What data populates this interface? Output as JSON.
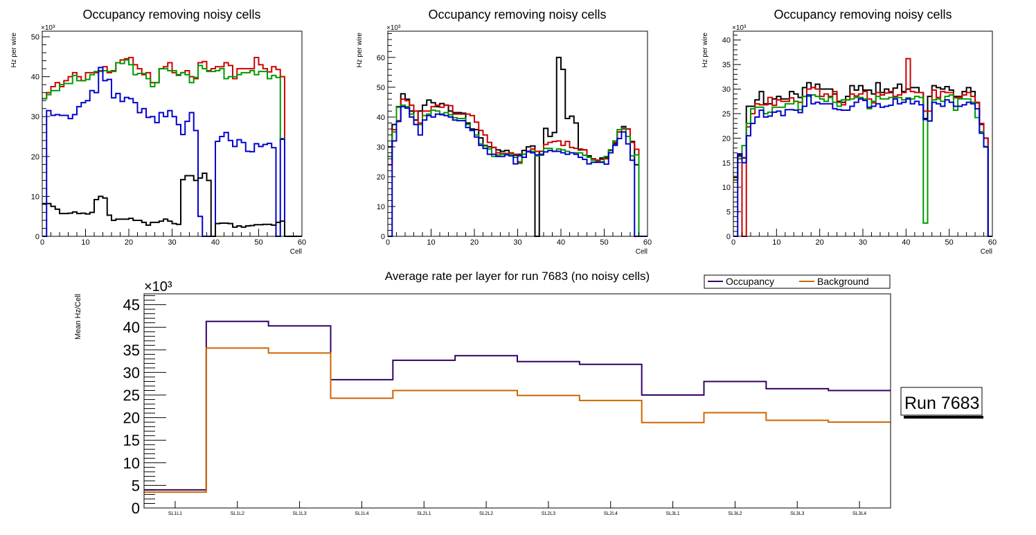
{
  "chart_data": [
    {
      "type": "line",
      "style": "step-histogram",
      "title": "Occupancy removing noisy cells",
      "xlabel": "Cell",
      "ylabel": "Hz per wire",
      "y_multiplier": "×10³",
      "xlim": [
        0,
        60
      ],
      "ylim": [
        0,
        51.4
      ],
      "x_ticks": [
        "0",
        "10",
        "20",
        "30",
        "40",
        "50",
        "60"
      ],
      "y_ticks": [
        "0",
        "10",
        "20",
        "30",
        "40",
        "50"
      ],
      "series": [
        {
          "name": "red",
          "color": "#cc0000",
          "values": [
            34.5,
            36,
            37.5,
            38.5,
            37.5,
            39,
            40,
            41,
            40,
            39,
            41,
            41,
            41,
            41.5,
            42.5,
            41,
            41.5,
            43.5,
            44.2,
            44.5,
            44.8,
            43,
            42,
            40.5,
            41,
            38.5,
            38.5,
            42,
            42.5,
            43.5,
            41,
            40.5,
            41,
            41.5,
            40,
            39.5,
            43.5,
            43.8,
            41.5,
            42,
            42.5,
            42.5,
            43.5,
            42.8,
            39.5,
            42,
            42,
            42,
            42,
            44.8,
            43,
            42,
            41.2,
            42.5,
            41.8,
            40,
            0,
            0,
            0,
            0
          ]
        },
        {
          "name": "green",
          "color": "#009900",
          "values": [
            34.5,
            35.5,
            36.5,
            36.5,
            38,
            38.3,
            38.3,
            40.3,
            39,
            39,
            39.3,
            40.5,
            41.3,
            41.3,
            41.5,
            41.3,
            41.3,
            43.5,
            43.3,
            44.2,
            43,
            40.5,
            40.8,
            40.8,
            39.5,
            37.5,
            38.5,
            42,
            42,
            41.5,
            41.5,
            40.3,
            41,
            40.5,
            38.5,
            39.8,
            42.8,
            42,
            41.3,
            41.3,
            41.5,
            42,
            39.5,
            40,
            40,
            40.5,
            41,
            41,
            41.5,
            40.5,
            41.3,
            41.3,
            39.5,
            40.3,
            39.8,
            24.5,
            0,
            0,
            0,
            0
          ]
        },
        {
          "name": "blue",
          "color": "#0000cc",
          "values": [
            0,
            31.5,
            30.3,
            30.5,
            30.3,
            30.3,
            29.5,
            30.5,
            32.5,
            33.5,
            34,
            36.5,
            36,
            42.3,
            39,
            39.3,
            34.7,
            35.8,
            33.8,
            34.8,
            34.5,
            33.5,
            31,
            32,
            29.8,
            30,
            28.5,
            31,
            30,
            31.5,
            30,
            28,
            25.5,
            28.8,
            31,
            26.5,
            5,
            0,
            0,
            0,
            23.8,
            25,
            26,
            24,
            22.5,
            24.2,
            23.5,
            21.3,
            21.2,
            23.2,
            22.5,
            23,
            23.3,
            22.2,
            0,
            24.3,
            0,
            0,
            0,
            0
          ]
        },
        {
          "name": "black",
          "color": "#000000",
          "values": [
            8.2,
            8.2,
            7.5,
            6.8,
            5.7,
            5.7,
            5.8,
            6.1,
            5.7,
            5.8,
            5.6,
            6,
            9.2,
            10,
            9.6,
            5.3,
            4,
            4.3,
            4.3,
            4.3,
            4.5,
            4,
            4,
            3.5,
            2.8,
            3.5,
            3.5,
            3.8,
            4.3,
            3.8,
            3.2,
            3,
            14.2,
            15.2,
            15.2,
            14,
            14.6,
            15.8,
            14,
            0,
            3.2,
            3.3,
            3.3,
            3.2,
            2.3,
            2.6,
            2.3,
            2.6,
            2.7,
            2.9,
            2.9,
            3,
            3,
            2.8,
            3.5,
            3.8,
            0,
            0,
            0,
            0
          ]
        }
      ]
    },
    {
      "type": "line",
      "style": "step-histogram",
      "title": "Occupancy removing noisy cells",
      "xlabel": "Cell",
      "ylabel": "Hz per wire",
      "y_multiplier": "×10³",
      "xlim": [
        0,
        60
      ],
      "ylim": [
        0,
        68.8
      ],
      "x_ticks": [
        "0",
        "10",
        "20",
        "30",
        "40",
        "50",
        "60"
      ],
      "y_ticks": [
        "0",
        "10",
        "20",
        "30",
        "40",
        "50",
        "60"
      ],
      "series": [
        {
          "name": "black",
          "color": "#000000",
          "values": [
            30,
            37.5,
            43.5,
            47.8,
            46,
            42,
            39,
            42,
            44,
            45.7,
            44.8,
            43.5,
            44.5,
            44,
            42,
            41.5,
            41.5,
            41.3,
            38,
            36,
            35.8,
            33,
            30.5,
            30,
            29.8,
            29,
            28.5,
            28.8,
            28,
            27.2,
            27.5,
            28.8,
            30,
            30.3,
            0,
            28.5,
            36.2,
            33.5,
            34.8,
            60,
            56,
            39.5,
            40.3,
            38,
            29,
            29,
            27,
            26,
            25.5,
            26.3,
            26.5,
            28.8,
            31,
            35,
            36.8,
            36,
            31.8,
            24,
            0,
            0
          ]
        },
        {
          "name": "red",
          "color": "#cc0000",
          "values": [
            24,
            35.8,
            38.8,
            46,
            45.5,
            44,
            42,
            38,
            42,
            42,
            43.5,
            44,
            43.3,
            44,
            43.8,
            41,
            41,
            41,
            41,
            40.5,
            38.3,
            35.5,
            34,
            31.5,
            29.8,
            28,
            27.8,
            27.8,
            28,
            27.5,
            25,
            27.5,
            28.5,
            29.3,
            28.5,
            28.5,
            30.8,
            31.5,
            31.8,
            32,
            30.5,
            31.8,
            29.8,
            29.5,
            29.3,
            29,
            26.5,
            26,
            25.3,
            25.8,
            26,
            29,
            31.5,
            35,
            36,
            36,
            31.5,
            29.2,
            0,
            0
          ]
        },
        {
          "name": "green",
          "color": "#009900",
          "values": [
            26.8,
            35,
            43.3,
            44,
            43.5,
            41,
            37.5,
            37.5,
            40.5,
            41,
            42.3,
            42,
            41,
            41.5,
            40.8,
            39.8,
            39.5,
            39.5,
            37.5,
            35.5,
            34,
            31,
            30.3,
            29.3,
            26.8,
            27.3,
            27.5,
            27.5,
            27.5,
            26.5,
            24.5,
            27.5,
            28.3,
            28.5,
            27,
            27.2,
            29.5,
            29.5,
            28.5,
            29.3,
            29,
            28.5,
            28,
            28,
            28,
            27.2,
            26.5,
            25.5,
            25,
            25,
            26.8,
            29,
            32,
            35.8,
            36.3,
            33.5,
            27,
            27.3,
            0,
            0
          ]
        },
        {
          "name": "blue",
          "color": "#0000cc",
          "values": [
            0,
            32,
            38.5,
            43.5,
            43,
            40,
            37.5,
            34,
            39,
            40.5,
            40,
            41,
            40.8,
            40.5,
            40,
            39,
            38.8,
            38.8,
            36.5,
            35.5,
            33.3,
            30.5,
            29.5,
            27.5,
            27.5,
            26.8,
            26.8,
            27.3,
            27,
            24.3,
            27,
            26.5,
            28.5,
            28,
            27.3,
            27.5,
            28.3,
            28.8,
            28.5,
            28.5,
            28,
            27.5,
            28,
            27.5,
            26.5,
            25.8,
            24.3,
            24.8,
            24.8,
            24.8,
            24.2,
            28,
            30.5,
            32.8,
            35,
            31,
            25.5,
            0,
            0,
            0
          ]
        }
      ]
    },
    {
      "type": "line",
      "style": "step-histogram",
      "title": "Occupancy removing noisy cells",
      "xlabel": "Cell",
      "ylabel": "Hz per wire",
      "y_multiplier": "×10³",
      "xlim": [
        0,
        60
      ],
      "ylim": [
        0,
        41.8
      ],
      "x_ticks": [
        "0",
        "10",
        "20",
        "30",
        "40",
        "50",
        "60"
      ],
      "y_ticks": [
        "0",
        "5",
        "10",
        "15",
        "20",
        "25",
        "30",
        "35",
        "40"
      ],
      "series": [
        {
          "name": "black",
          "color": "#000000",
          "values": [
            12,
            16.5,
            16,
            26.5,
            26.5,
            27.8,
            29.5,
            27,
            27,
            28,
            28.5,
            28,
            28,
            29.5,
            29,
            28.3,
            30.3,
            31.3,
            30.3,
            31,
            30,
            30,
            30,
            29,
            27.5,
            27.3,
            28.5,
            30.7,
            29.8,
            30.7,
            29.8,
            29.8,
            29,
            31.3,
            29.3,
            30,
            29.3,
            30.2,
            31,
            29.5,
            30,
            30.3,
            30.3,
            29.3,
            24,
            28.5,
            30.7,
            30.3,
            30,
            30.5,
            29.8,
            28.5,
            28.5,
            29.5,
            30.3,
            29.5,
            27.2,
            22.8,
            20,
            0
          ]
        },
        {
          "name": "red",
          "color": "#cc0000",
          "values": [
            11.5,
            16.3,
            0,
            22.3,
            25,
            27,
            26.8,
            26.8,
            28.3,
            26.7,
            27.8,
            27.5,
            27.5,
            28.2,
            27.5,
            27.3,
            28.5,
            30,
            30.3,
            30,
            28.5,
            29,
            28.5,
            29.5,
            27.3,
            26.8,
            27.8,
            29,
            28.6,
            29,
            29.5,
            28,
            27.2,
            29.3,
            28.8,
            29.2,
            29.5,
            28.5,
            28.8,
            29.3,
            36.2,
            29.5,
            29.3,
            29.3,
            25.5,
            25.5,
            29.8,
            28.3,
            29.5,
            29.3,
            29.3,
            28.2,
            28.3,
            28.8,
            29.3,
            28.5,
            27.3,
            23,
            20,
            0
          ]
        },
        {
          "name": "green",
          "color": "#009900",
          "values": [
            12.2,
            15.8,
            18.5,
            23,
            26,
            26.3,
            26.3,
            25,
            25.3,
            26.3,
            26.3,
            26.3,
            27,
            27,
            27.5,
            25.8,
            28.5,
            28.5,
            28.8,
            28.5,
            28,
            27.5,
            28.3,
            27.3,
            26.5,
            27.8,
            27.8,
            28,
            28.3,
            28.3,
            28,
            26,
            27.5,
            28.5,
            28,
            28,
            28.3,
            28.3,
            28.3,
            27.8,
            28.2,
            28,
            28.5,
            28.3,
            2.7,
            23.5,
            27.8,
            28,
            27.5,
            28.5,
            28.8,
            25.7,
            28,
            28,
            28,
            27.3,
            24.2,
            21.3,
            18.3,
            0
          ]
        },
        {
          "name": "blue",
          "color": "#0000cc",
          "values": [
            0,
            16.8,
            15,
            20.5,
            23,
            24.3,
            25.7,
            24.3,
            24.5,
            25.3,
            25.5,
            24.6,
            25.8,
            25.8,
            25.7,
            25.2,
            26.5,
            28.8,
            27,
            27.3,
            27,
            27,
            27,
            26,
            25.8,
            25.7,
            25.7,
            26.5,
            27.3,
            28,
            27.7,
            26.3,
            26.5,
            27,
            26.3,
            26.5,
            26.7,
            28,
            27,
            27.3,
            28,
            27,
            27.5,
            26.8,
            23.8,
            23.5,
            27.3,
            27,
            26.5,
            27.8,
            27.3,
            26.5,
            26.5,
            26.8,
            27.3,
            27,
            26,
            21,
            18.2,
            0
          ]
        }
      ]
    },
    {
      "type": "line",
      "style": "step-histogram",
      "title": "Average rate per layer for run 7683 (no noisy cells)",
      "xlabel": "",
      "ylabel": "Mean Hz/Cell",
      "y_multiplier": "×10³",
      "ylim": [
        0,
        47.4
      ],
      "y_ticks": [
        "0",
        "5",
        "10",
        "15",
        "20",
        "25",
        "30",
        "35",
        "40",
        "45"
      ],
      "categories": [
        "SL1L1",
        "SL1L2",
        "SL1L3",
        "SL1L4",
        "SL2L1",
        "SL2L2",
        "SL2L3",
        "SL2L4",
        "SL3L1",
        "SL3L2",
        "SL3L3",
        "SL3L4"
      ],
      "legend_position": "top-right",
      "series": [
        {
          "name": "Occupancy",
          "color": "#330066",
          "values": [
            4.0,
            41.3,
            40.3,
            28.4,
            32.7,
            33.7,
            32.4,
            31.8,
            25.0,
            28.0,
            26.4,
            26.0
          ]
        },
        {
          "name": "Background",
          "color": "#cc6600",
          "values": [
            3.5,
            35.4,
            34.3,
            24.3,
            26.0,
            26.0,
            24.9,
            23.8,
            18.9,
            21.1,
            19.4,
            19.0
          ]
        }
      ],
      "annotation": "Run 7683"
    }
  ]
}
